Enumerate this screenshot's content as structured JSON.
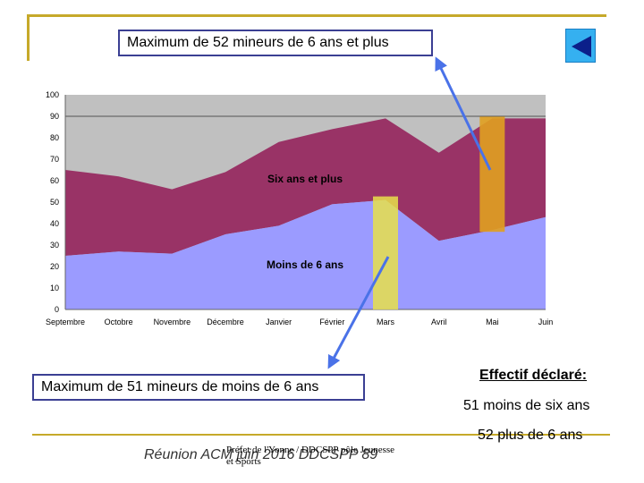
{
  "callouts": {
    "top": "Maximum de 52 mineurs de 6 ans et plus",
    "bottom": "Maximum de 51 mineurs de moins de 6 ans"
  },
  "effectif": {
    "title": "Effectif déclaré:",
    "line1": "51 moins de six ans",
    "line2": "52 plus de 6 ans"
  },
  "footer": {
    "main": "Réunion ACM juin 2016 DDCSPP 89",
    "small_line1": "Préfet de l'Yonne / DDCSPP pôle Jeunesse",
    "small_line2": "et Sports"
  },
  "nav": {
    "icon": "back-triangle-icon"
  },
  "colors": {
    "under6": "#9b9bff",
    "over6": "#993366",
    "background_area": "#c0c0c0",
    "highlight": "#e8e04a",
    "arrow": "#4a72e8"
  },
  "chart_data": {
    "type": "area",
    "stacked": true,
    "categories": [
      "Septembre",
      "Octobre",
      "Novembre",
      "Décembre",
      "Janvier",
      "Février",
      "Mars",
      "Avril",
      "Mai",
      "Juin"
    ],
    "series": [
      {
        "name": "Moins de 6 ans",
        "values": [
          25,
          27,
          26,
          35,
          39,
          49,
          51,
          32,
          37,
          43
        ]
      },
      {
        "name": "Six ans et plus",
        "values": [
          40,
          35,
          30,
          29,
          39,
          35,
          38,
          41,
          52,
          46
        ]
      }
    ],
    "y_ticks": [
      0,
      10,
      20,
      30,
      40,
      50,
      60,
      70,
      80,
      90,
      100
    ],
    "ylim": [
      0,
      100
    ],
    "highlighted_categories": [
      "Mars",
      "Mai"
    ]
  }
}
